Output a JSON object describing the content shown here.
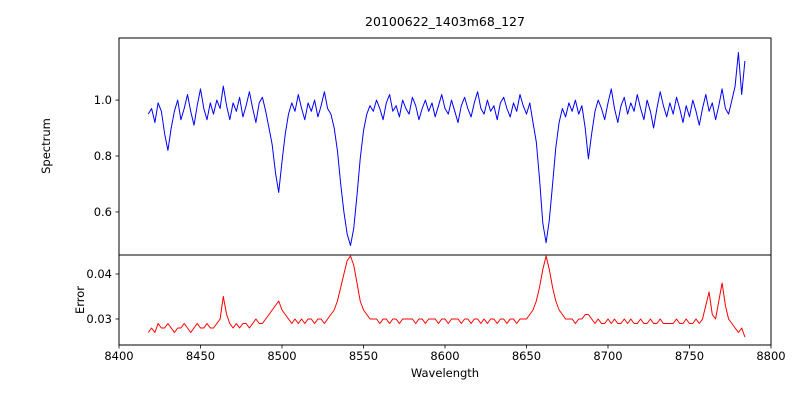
{
  "chart_data": {
    "type": "line",
    "title": "20100622_1403m68_127",
    "xlabel": "Wavelength",
    "xlim": [
      8400,
      8800
    ],
    "x_ticks": [
      8400,
      8450,
      8500,
      8550,
      8600,
      8650,
      8700,
      8750,
      8800
    ],
    "x_tick_labels": [
      "8400",
      "8450",
      "8500",
      "8550",
      "8600",
      "8650",
      "8700",
      "8750",
      "8800"
    ],
    "grid": false,
    "legend": "none",
    "x_start": 8418,
    "x_step": 2,
    "subplots": [
      {
        "ylabel": "Spectrum",
        "ylim": [
          0.446,
          1.222
        ],
        "y_ticks": [
          0.6,
          0.8,
          1.0
        ],
        "y_tick_labels": [
          "0.6",
          "0.8",
          "1.0"
        ],
        "color": "#0000ff",
        "series": "spectrum_values",
        "notes": "normalized stellar spectrum, strong absorption lines near 8498, 8542, 8662"
      },
      {
        "ylabel": "Error",
        "ylim": [
          0.02422,
          0.04422
        ],
        "y_ticks": [
          0.03,
          0.04
        ],
        "y_tick_labels": [
          "0.03",
          "0.04"
        ],
        "color": "#ff0000",
        "series": "error_values",
        "notes": "error spectrum, peaks at 8542 and 8662"
      }
    ],
    "spectrum_values": [
      0.95,
      0.97,
      0.92,
      0.99,
      0.96,
      0.88,
      0.82,
      0.9,
      0.96,
      1.0,
      0.93,
      0.97,
      1.02,
      0.96,
      0.91,
      0.98,
      1.04,
      0.97,
      0.93,
      0.99,
      0.95,
      1.0,
      0.97,
      1.05,
      0.98,
      0.93,
      0.99,
      0.96,
      1.01,
      0.94,
      0.98,
      1.03,
      0.97,
      0.92,
      0.99,
      1.01,
      0.96,
      0.9,
      0.84,
      0.74,
      0.67,
      0.78,
      0.88,
      0.95,
      0.99,
      0.96,
      1.02,
      0.97,
      0.93,
      0.99,
      0.96,
      1.0,
      0.94,
      0.98,
      1.03,
      0.97,
      0.95,
      0.9,
      0.82,
      0.7,
      0.6,
      0.52,
      0.48,
      0.54,
      0.66,
      0.79,
      0.89,
      0.95,
      0.98,
      0.96,
      1.0,
      0.97,
      0.93,
      0.99,
      1.02,
      0.96,
      0.98,
      0.94,
      1.0,
      0.97,
      0.95,
      1.01,
      0.98,
      0.93,
      0.97,
      1.0,
      0.96,
      0.99,
      0.94,
      0.98,
      1.02,
      0.97,
      0.95,
      1.0,
      0.96,
      0.92,
      0.98,
      1.01,
      0.97,
      0.94,
      0.99,
      1.03,
      0.97,
      0.95,
      1.0,
      0.96,
      0.98,
      0.93,
      0.99,
      1.01,
      0.97,
      0.94,
      0.99,
      0.96,
      1.02,
      0.98,
      0.95,
      0.99,
      0.92,
      0.85,
      0.72,
      0.56,
      0.49,
      0.57,
      0.7,
      0.83,
      0.92,
      0.97,
      0.94,
      0.99,
      0.96,
      1.0,
      0.95,
      0.98,
      0.9,
      0.79,
      0.88,
      0.96,
      1.0,
      0.97,
      0.93,
      0.99,
      1.04,
      0.97,
      0.92,
      0.98,
      1.01,
      0.95,
      0.99,
      0.96,
      1.02,
      0.97,
      0.93,
      1.0,
      0.96,
      0.9,
      0.97,
      1.03,
      0.98,
      0.94,
      0.99,
      0.95,
      1.01,
      0.97,
      0.92,
      0.98,
      0.94,
      1.0,
      0.96,
      0.91,
      0.97,
      1.02,
      0.96,
      0.99,
      0.93,
      0.98,
      1.04,
      0.97,
      0.95,
      1.0,
      1.05,
      1.17,
      1.02,
      1.14
    ],
    "error_values": [
      0.027,
      0.028,
      0.027,
      0.029,
      0.028,
      0.028,
      0.029,
      0.028,
      0.027,
      0.028,
      0.028,
      0.029,
      0.028,
      0.027,
      0.028,
      0.029,
      0.028,
      0.028,
      0.029,
      0.028,
      0.028,
      0.029,
      0.03,
      0.035,
      0.031,
      0.029,
      0.028,
      0.029,
      0.028,
      0.029,
      0.029,
      0.028,
      0.029,
      0.03,
      0.029,
      0.029,
      0.03,
      0.031,
      0.032,
      0.033,
      0.034,
      0.032,
      0.031,
      0.03,
      0.029,
      0.03,
      0.029,
      0.03,
      0.029,
      0.03,
      0.03,
      0.029,
      0.03,
      0.03,
      0.029,
      0.03,
      0.031,
      0.032,
      0.034,
      0.037,
      0.04,
      0.043,
      0.044,
      0.042,
      0.038,
      0.034,
      0.032,
      0.031,
      0.03,
      0.03,
      0.03,
      0.029,
      0.03,
      0.03,
      0.029,
      0.03,
      0.03,
      0.029,
      0.03,
      0.03,
      0.03,
      0.03,
      0.029,
      0.03,
      0.03,
      0.029,
      0.03,
      0.03,
      0.03,
      0.029,
      0.03,
      0.03,
      0.029,
      0.03,
      0.03,
      0.03,
      0.029,
      0.03,
      0.03,
      0.029,
      0.03,
      0.03,
      0.029,
      0.03,
      0.029,
      0.03,
      0.03,
      0.029,
      0.03,
      0.03,
      0.029,
      0.03,
      0.03,
      0.029,
      0.03,
      0.03,
      0.03,
      0.031,
      0.032,
      0.034,
      0.037,
      0.041,
      0.044,
      0.041,
      0.037,
      0.034,
      0.032,
      0.031,
      0.03,
      0.03,
      0.03,
      0.029,
      0.03,
      0.03,
      0.031,
      0.031,
      0.03,
      0.029,
      0.03,
      0.029,
      0.029,
      0.03,
      0.029,
      0.03,
      0.029,
      0.029,
      0.03,
      0.029,
      0.03,
      0.029,
      0.029,
      0.03,
      0.029,
      0.029,
      0.03,
      0.029,
      0.029,
      0.03,
      0.029,
      0.029,
      0.029,
      0.029,
      0.03,
      0.029,
      0.029,
      0.03,
      0.029,
      0.029,
      0.03,
      0.029,
      0.03,
      0.033,
      0.036,
      0.031,
      0.03,
      0.034,
      0.038,
      0.033,
      0.03,
      0.029,
      0.028,
      0.027,
      0.028,
      0.026
    ]
  }
}
